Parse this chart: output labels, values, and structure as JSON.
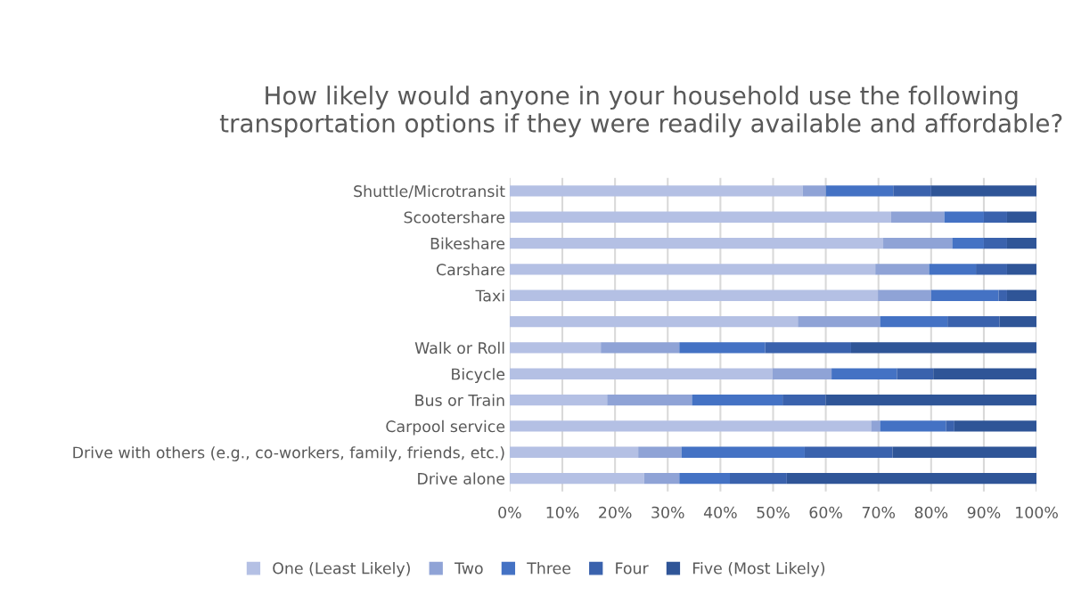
{
  "chart_data": {
    "type": "bar",
    "orientation": "horizontal",
    "stacked": true,
    "title": "How likely would anyone in your household use the following transportation options if they were readily available and affordable?",
    "categories": [
      "Shuttle/Microtransit",
      "Scootershare",
      "Bikeshare",
      "Carshare",
      "Taxi",
      null,
      "Walk or Roll",
      "Bicycle",
      "Bus or Train",
      "Carpool service",
      "Drive with others (e.g., co-workers, family, friends, etc.)",
      "Drive alone"
    ],
    "series": [
      {
        "name": "One (Least Likely)",
        "color": "#b4c0e4",
        "values": [
          55.6,
          72.4,
          70.9,
          69.4,
          69.9,
          54.7,
          17.3,
          49.9,
          18.5,
          68.6,
          24.4,
          25.5
        ]
      },
      {
        "name": "Two",
        "color": "#8fa3d6",
        "values": [
          4.4,
          10.1,
          13.1,
          10.2,
          10.1,
          15.6,
          14.9,
          11.2,
          16.1,
          1.7,
          8.2,
          6.7
        ]
      },
      {
        "name": "Three",
        "color": "#4472c4",
        "values": [
          12.8,
          7.5,
          6.0,
          8.9,
          12.8,
          12.8,
          16.3,
          12.4,
          17.2,
          12.5,
          23.4,
          9.6
        ]
      },
      {
        "name": "Four",
        "color": "#3a62ad",
        "values": [
          7.2,
          4.4,
          4.4,
          5.9,
          1.6,
          9.9,
          16.3,
          6.9,
          8.2,
          1.6,
          16.7,
          10.8
        ]
      },
      {
        "name": "Five (Most Likely)",
        "color": "#2f5597",
        "values": [
          20.0,
          5.6,
          5.6,
          5.6,
          5.6,
          7.0,
          35.2,
          19.6,
          40.0,
          15.6,
          27.3,
          47.4
        ]
      }
    ],
    "xlim": [
      0,
      100
    ],
    "xticks": [
      {
        "value": 0,
        "label": "0%"
      },
      {
        "value": 10,
        "label": "10%"
      },
      {
        "value": 20,
        "label": "20%"
      },
      {
        "value": 30,
        "label": "30%"
      },
      {
        "value": 40,
        "label": "40%"
      },
      {
        "value": 50,
        "label": "50%"
      },
      {
        "value": 60,
        "label": "60%"
      },
      {
        "value": 70,
        "label": "70%"
      },
      {
        "value": 80,
        "label": "80%"
      },
      {
        "value": 90,
        "label": "90%"
      },
      {
        "value": 100,
        "label": "100%"
      }
    ],
    "grid": "x",
    "legend": "bottom"
  }
}
